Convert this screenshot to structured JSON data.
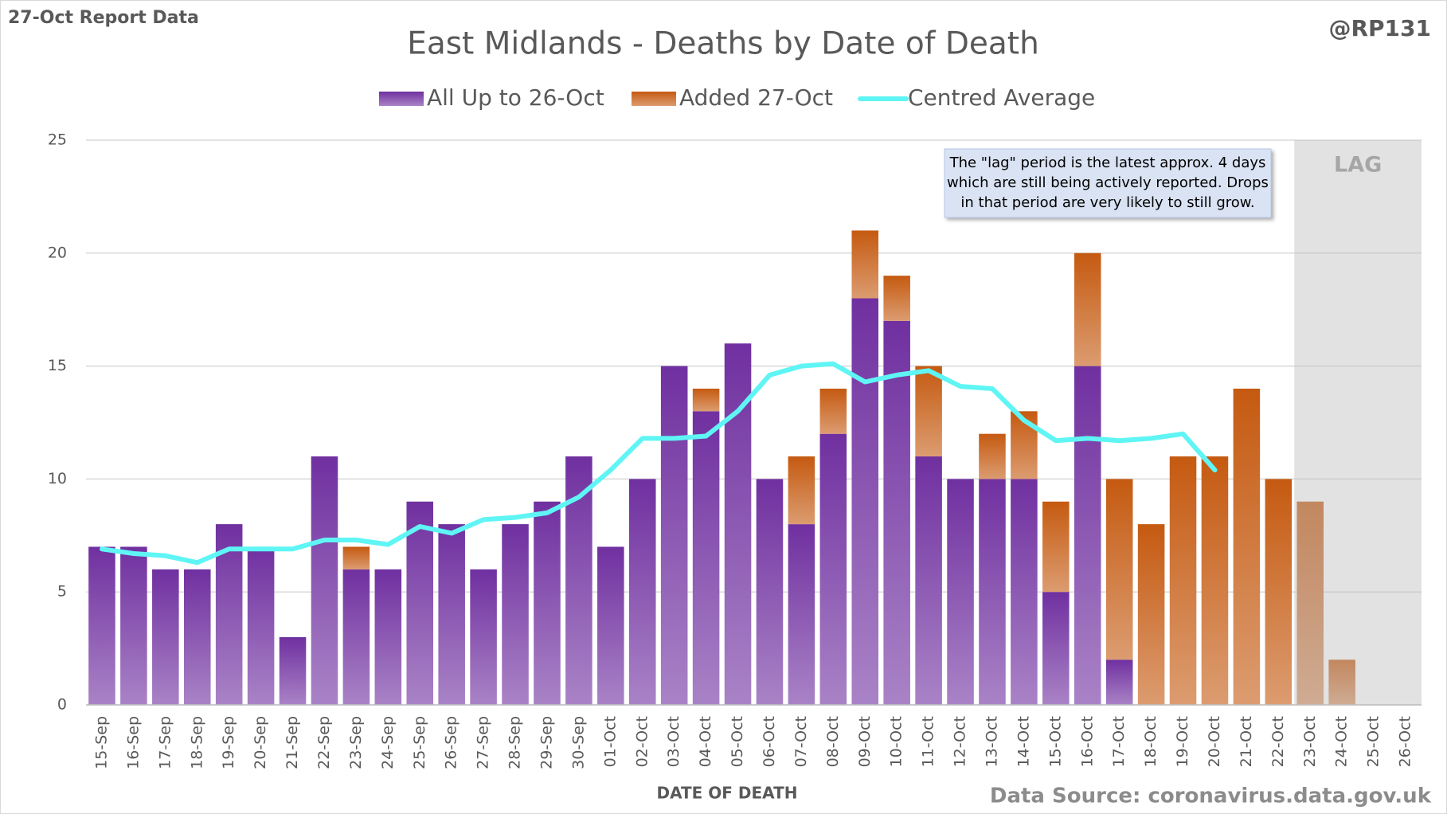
{
  "chart_data": {
    "type": "stacked_bar",
    "title": "East Midlands - Deaths by Date of Death",
    "report_label": "27-Oct Report Data",
    "handle": "@RP131",
    "source": "Data Source: coronavirus.data.gov.uk",
    "x_label": "DATE OF DEATH",
    "annotation": [
      "The \"lag\" period is the latest approx. 4 days",
      "which are still being actively reported.  Drops",
      "in that period are very likely to still grow."
    ],
    "lag": {
      "label": "LAG",
      "from": "23-Oct",
      "to": "26-Oct"
    },
    "categories": [
      "15-Sep",
      "16-Sep",
      "17-Sep",
      "18-Sep",
      "19-Sep",
      "20-Sep",
      "21-Sep",
      "22-Sep",
      "23-Sep",
      "24-Sep",
      "25-Sep",
      "26-Sep",
      "27-Sep",
      "28-Sep",
      "29-Sep",
      "30-Sep",
      "01-Oct",
      "02-Oct",
      "03-Oct",
      "04-Oct",
      "05-Oct",
      "06-Oct",
      "07-Oct",
      "08-Oct",
      "09-Oct",
      "10-Oct",
      "11-Oct",
      "12-Oct",
      "13-Oct",
      "14-Oct",
      "15-Oct",
      "16-Oct",
      "17-Oct",
      "18-Oct",
      "19-Oct",
      "20-Oct",
      "21-Oct",
      "22-Oct",
      "23-Oct",
      "24-Oct",
      "25-Oct",
      "26-Oct"
    ],
    "series": [
      {
        "name": "All Up to 26-Oct",
        "color": "#7030a0",
        "values": [
          7,
          7,
          6,
          6,
          8,
          7,
          3,
          11,
          6,
          6,
          9,
          8,
          6,
          8,
          9,
          11,
          7,
          10,
          15,
          13,
          16,
          10,
          8,
          12,
          18,
          17,
          11,
          10,
          10,
          10,
          5,
          15,
          2,
          0,
          0,
          0,
          0,
          0,
          0,
          0,
          0,
          0
        ]
      },
      {
        "name": "Added 27-Oct",
        "color": "#c55a11",
        "values": [
          0,
          0,
          0,
          0,
          0,
          0,
          0,
          0,
          1,
          0,
          0,
          0,
          0,
          0,
          0,
          0,
          0,
          0,
          0,
          1,
          0,
          0,
          3,
          2,
          3,
          2,
          4,
          0,
          2,
          3,
          4,
          5,
          8,
          8,
          11,
          11,
          14,
          10,
          9,
          2,
          0,
          0
        ]
      },
      {
        "name": "Centred Average",
        "type": "line",
        "color": "#5ff5f5",
        "values": [
          6.9,
          6.7,
          6.6,
          6.3,
          6.9,
          6.9,
          6.9,
          7.3,
          7.3,
          7.1,
          7.9,
          7.6,
          8.2,
          8.3,
          8.5,
          9.2,
          10.4,
          11.8,
          11.8,
          11.9,
          13.0,
          14.6,
          15.0,
          15.1,
          14.3,
          14.6,
          14.8,
          14.1,
          14.0,
          12.6,
          11.7,
          11.8,
          11.7,
          11.8,
          12.0,
          10.4,
          null,
          null,
          null,
          null,
          null,
          null
        ]
      }
    ],
    "ylim": [
      0,
      25
    ],
    "yticks": [
      0,
      5,
      10,
      15,
      20,
      25
    ],
    "grid": true
  }
}
